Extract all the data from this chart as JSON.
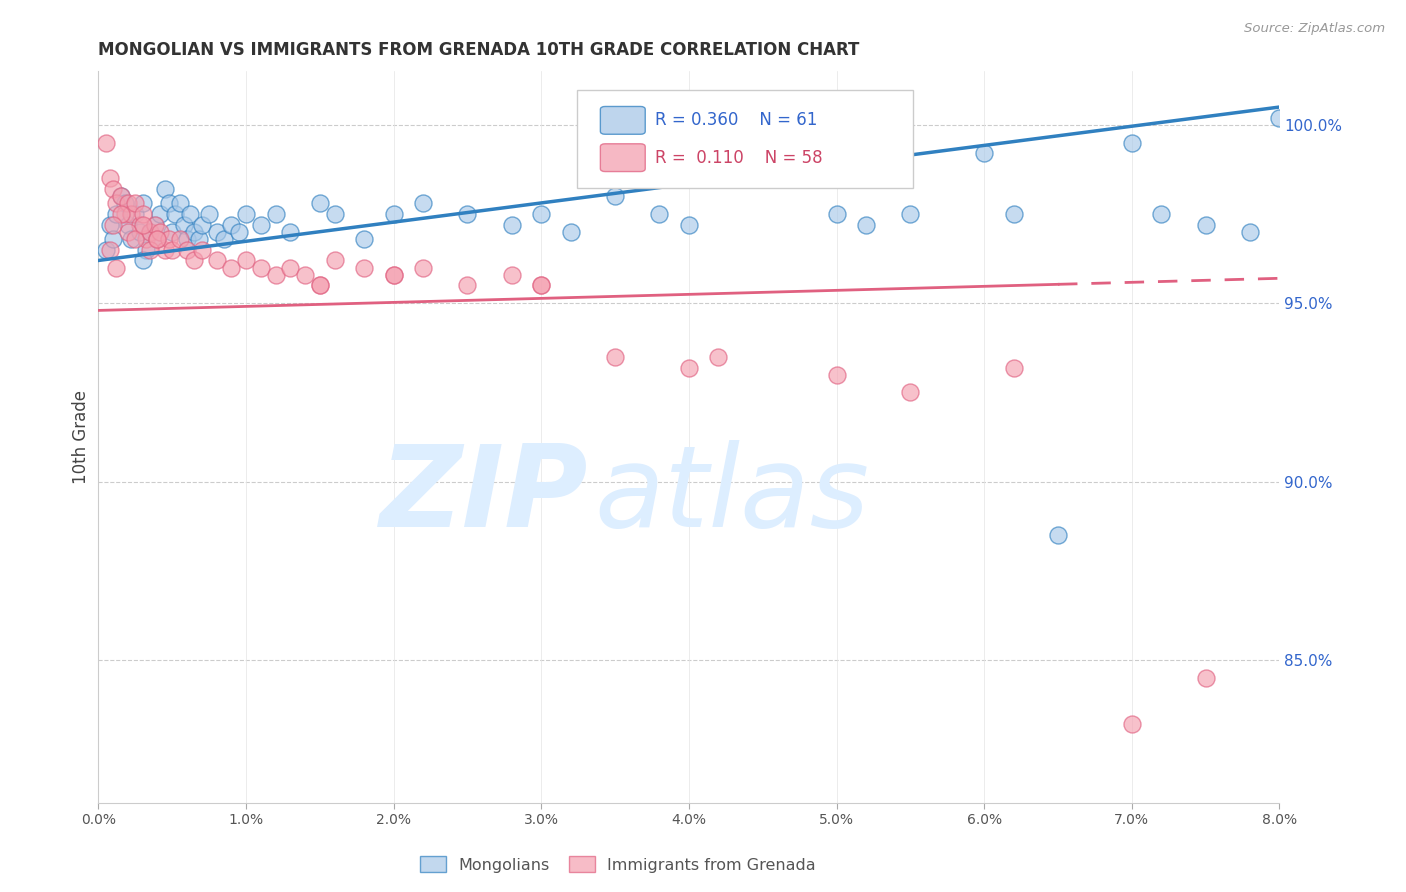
{
  "title": "MONGOLIAN VS IMMIGRANTS FROM GRENADA 10TH GRADE CORRELATION CHART",
  "source": "Source: ZipAtlas.com",
  "ylabel": "10th Grade",
  "right_yticks": [
    85.0,
    90.0,
    95.0,
    100.0
  ],
  "xlim": [
    0.0,
    8.0
  ],
  "ylim": [
    81.0,
    101.5
  ],
  "blue_R": 0.36,
  "blue_N": 61,
  "pink_R": 0.11,
  "pink_N": 58,
  "blue_color": "#a8c8e8",
  "pink_color": "#f4a0b0",
  "blue_line_color": "#3080c0",
  "pink_line_color": "#e06080",
  "watermark_zip": "ZIP",
  "watermark_atlas": "atlas",
  "watermark_color": "#ddeeff",
  "legend_label_blue": "Mongolians",
  "legend_label_pink": "Immigrants from Grenada",
  "blue_scatter_x": [
    0.05,
    0.08,
    0.1,
    0.12,
    0.15,
    0.18,
    0.2,
    0.22,
    0.25,
    0.28,
    0.3,
    0.32,
    0.35,
    0.38,
    0.4,
    0.42,
    0.45,
    0.48,
    0.5,
    0.52,
    0.55,
    0.58,
    0.6,
    0.62,
    0.65,
    0.68,
    0.7,
    0.75,
    0.8,
    0.85,
    0.9,
    0.95,
    1.0,
    1.1,
    1.2,
    1.3,
    1.5,
    1.6,
    1.8,
    2.0,
    2.2,
    2.5,
    2.8,
    3.0,
    3.2,
    3.5,
    3.8,
    4.0,
    4.5,
    5.0,
    5.2,
    5.5,
    6.0,
    6.2,
    6.5,
    7.0,
    7.2,
    7.5,
    7.8,
    8.0,
    0.3
  ],
  "blue_scatter_y": [
    96.5,
    97.2,
    96.8,
    97.5,
    98.0,
    97.8,
    97.2,
    96.8,
    97.5,
    97.0,
    97.8,
    96.5,
    97.0,
    97.2,
    96.8,
    97.5,
    98.2,
    97.8,
    97.0,
    97.5,
    97.8,
    97.2,
    96.8,
    97.5,
    97.0,
    96.8,
    97.2,
    97.5,
    97.0,
    96.8,
    97.2,
    97.0,
    97.5,
    97.2,
    97.5,
    97.0,
    97.8,
    97.5,
    96.8,
    97.5,
    97.8,
    97.5,
    97.2,
    97.5,
    97.0,
    98.0,
    97.5,
    97.2,
    99.0,
    97.5,
    97.2,
    97.5,
    99.2,
    97.5,
    88.5,
    99.5,
    97.5,
    97.2,
    97.0,
    100.2,
    96.2
  ],
  "pink_scatter_x": [
    0.05,
    0.08,
    0.1,
    0.12,
    0.15,
    0.18,
    0.2,
    0.22,
    0.25,
    0.28,
    0.3,
    0.32,
    0.35,
    0.38,
    0.4,
    0.42,
    0.45,
    0.48,
    0.5,
    0.55,
    0.6,
    0.65,
    0.7,
    0.8,
    0.9,
    1.0,
    1.1,
    1.2,
    1.3,
    1.4,
    1.5,
    1.6,
    1.8,
    2.0,
    2.2,
    2.5,
    2.8,
    3.0,
    3.5,
    4.0,
    4.2,
    5.0,
    5.5,
    6.2,
    7.0,
    7.5,
    0.15,
    0.2,
    0.25,
    0.3,
    0.35,
    0.4,
    0.1,
    0.12,
    0.08,
    1.5,
    2.0,
    3.0
  ],
  "pink_scatter_y": [
    99.5,
    98.5,
    98.2,
    97.8,
    98.0,
    97.5,
    97.8,
    97.5,
    97.8,
    97.2,
    97.5,
    96.8,
    97.0,
    97.2,
    96.8,
    97.0,
    96.5,
    96.8,
    96.5,
    96.8,
    96.5,
    96.2,
    96.5,
    96.2,
    96.0,
    96.2,
    96.0,
    95.8,
    96.0,
    95.8,
    95.5,
    96.2,
    96.0,
    95.8,
    96.0,
    95.5,
    95.8,
    95.5,
    93.5,
    93.2,
    93.5,
    93.0,
    92.5,
    93.2,
    83.2,
    84.5,
    97.5,
    97.0,
    96.8,
    97.2,
    96.5,
    96.8,
    97.2,
    96.0,
    96.5,
    95.5,
    95.8,
    95.5
  ],
  "blue_trend_x0": 0.0,
  "blue_trend_y0": 96.2,
  "blue_trend_x1": 8.0,
  "blue_trend_y1": 100.5,
  "pink_trend_x0": 0.0,
  "pink_trend_y0": 94.8,
  "pink_trend_x1": 8.0,
  "pink_trend_y1": 95.7,
  "pink_solid_end": 6.5
}
